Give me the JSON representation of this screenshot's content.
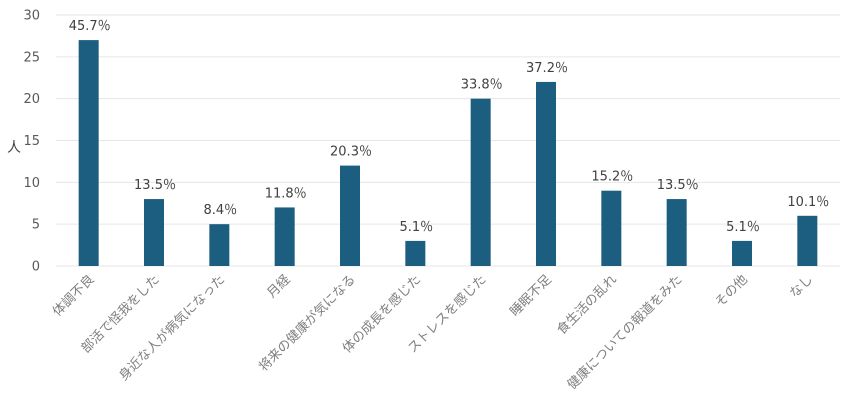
{
  "chart_data": {
    "type": "bar",
    "ylabel": "人",
    "ylim": [
      0,
      30
    ],
    "yticks": [
      0,
      5,
      10,
      15,
      20,
      25,
      30
    ],
    "grid": true,
    "bar_color": "#1b5e80",
    "categories": [
      "体調不良",
      "部活で怪我をした",
      "身近な人が病気になった",
      "月経",
      "将来の健康が気になる",
      "体の成長を感じた",
      "ストレスを感じた",
      "睡眠不足",
      "食生活の乱れ",
      "健康についての報道をみた",
      "その他",
      "なし"
    ],
    "values": [
      27,
      8,
      5,
      7,
      12,
      3,
      20,
      22,
      9,
      8,
      3,
      6
    ],
    "data_labels": [
      "45.7％",
      "13.5％",
      "8.4％",
      "11.8％",
      "20.3％",
      "5.1％",
      "33.8％",
      "37.2％",
      "15.2％",
      "13.5％",
      "5.1％",
      "10.1％"
    ]
  }
}
